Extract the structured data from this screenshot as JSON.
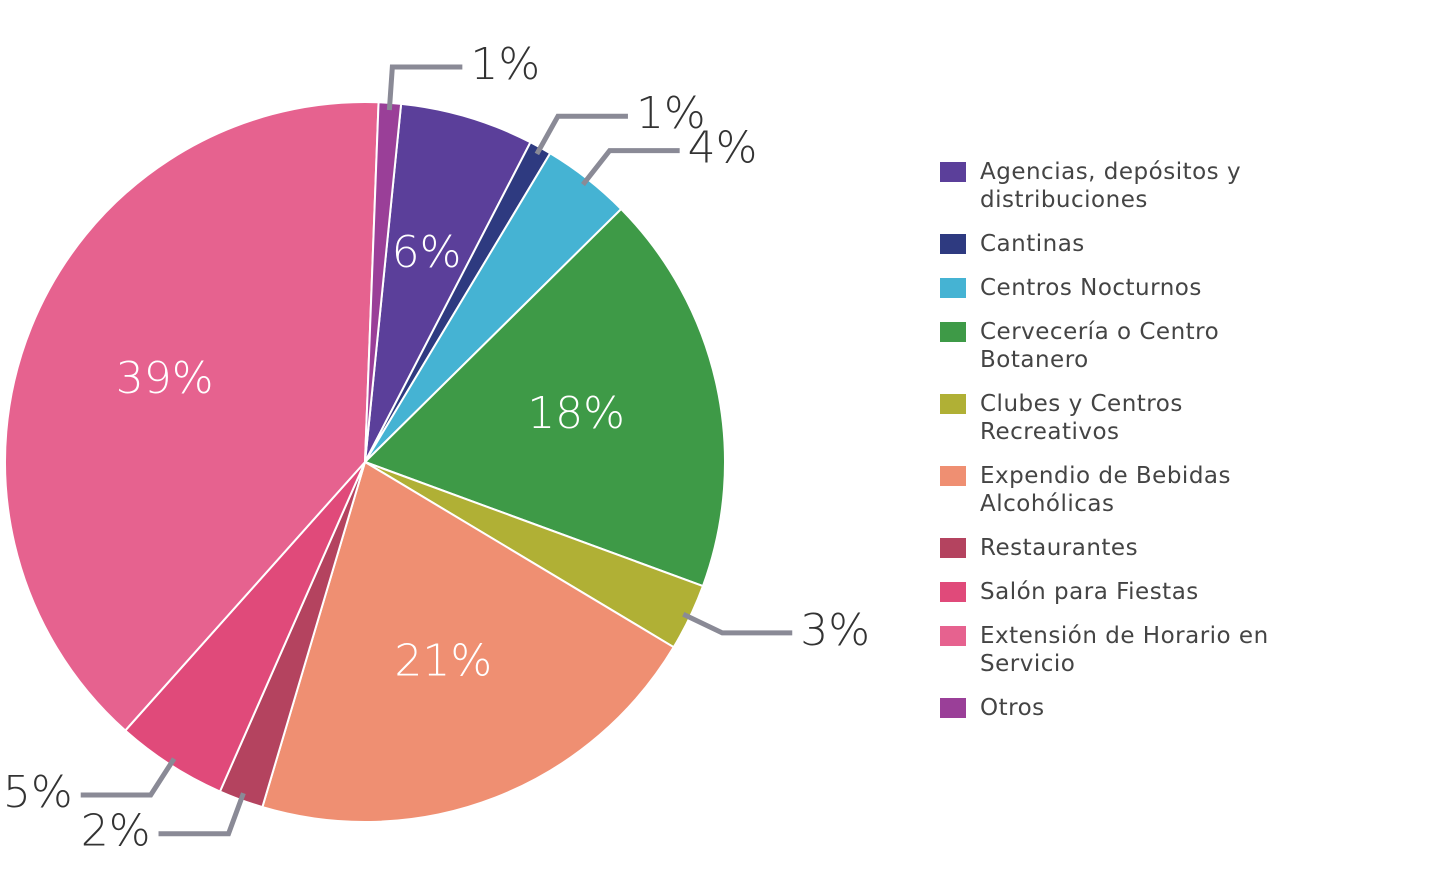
{
  "chart_data": {
    "type": "pie",
    "categories": [
      "Agencias, depósitos y distribuciones",
      "Cantinas",
      "Centros Nocturnos",
      "Cervecería o Centro Botanero",
      "Clubes y Centros Recreativos",
      "Expendio de Bebidas Alcohólicas",
      "Restaurantes",
      "Salón para Fiestas",
      "Extensión de Horario en Servicio",
      "Otros"
    ],
    "values": [
      6,
      1,
      4,
      18,
      3,
      21,
      2,
      5,
      39,
      1
    ],
    "value_labels": [
      "6%",
      "1%",
      "4%",
      "18%",
      "3%",
      "21%",
      "2%",
      "5%",
      "39%",
      "1%"
    ],
    "colors": [
      "#5b3f9a",
      "#2e3a80",
      "#45b3d3",
      "#3e9a47",
      "#b0b035",
      "#ef8f72",
      "#b4435f",
      "#e04a7a",
      "#e6628f",
      "#9a3f98"
    ]
  }
}
